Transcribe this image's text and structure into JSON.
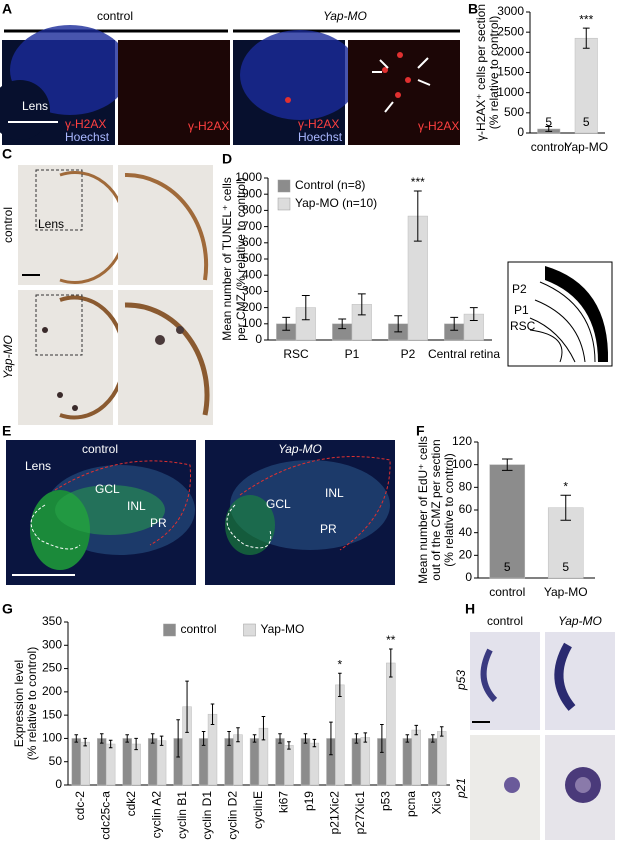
{
  "panel_letters": [
    "A",
    "B",
    "C",
    "D",
    "E",
    "F",
    "G",
    "H"
  ],
  "panel_a": {
    "headers": [
      "control",
      "Yap-MO"
    ],
    "labels": [
      "Lens",
      "γ-H2AX",
      "Hoechst",
      "γ-H2AX",
      "γ-H2AX",
      "Hoechst",
      "γ-H2AX"
    ]
  },
  "panel_c": {
    "rows": [
      "control",
      "Yap-MO"
    ],
    "labels": [
      "Lens"
    ]
  },
  "panel_d_diagram": {
    "labels": [
      "P2",
      "P1",
      "RSC"
    ]
  },
  "panel_e": {
    "headers": [
      "control",
      "Yap-MO"
    ],
    "labels": [
      "Lens",
      "GCL",
      "INL",
      "PR",
      "GCL",
      "INL",
      "PR"
    ]
  },
  "panel_h": {
    "headers": [
      "control",
      "Yap-MO"
    ],
    "rows": [
      "p53",
      "p21"
    ]
  },
  "chart_data": [
    {
      "type": "bar",
      "ylabel": [
        "γ-H2AX⁺ cells per section",
        "(% relative to control)"
      ],
      "categories": [
        "control",
        "Yap-MO"
      ],
      "values": [
        100,
        2350
      ],
      "errors": [
        60,
        250
      ],
      "colors": [
        "#8c8c8c",
        "#dcdcdc"
      ],
      "n_labels": [
        "5",
        "5"
      ],
      "significance": [
        null,
        "***"
      ],
      "ylim": [
        0,
        3000
      ],
      "yticks": [
        0,
        500,
        1000,
        1500,
        2000,
        2500,
        3000
      ]
    },
    {
      "type": "bar",
      "ylabel": [
        "Mean number of TUNEL⁺ cells",
        "per CMZ (% relative to control)"
      ],
      "categories": [
        "RSC",
        "P1",
        "P2",
        "Central retina"
      ],
      "series": [
        {
          "name": "Control (n=8)",
          "color": "#8c8c8c",
          "values": [
            100,
            100,
            100,
            100
          ],
          "errors": [
            40,
            30,
            50,
            40
          ]
        },
        {
          "name": "Yap-MO (n=10)",
          "color": "#dcdcdc",
          "values": [
            200,
            220,
            765,
            160
          ],
          "errors": [
            75,
            65,
            155,
            40
          ],
          "significance": [
            null,
            null,
            "***",
            null
          ]
        }
      ],
      "legend": "upper left",
      "ylim": [
        0,
        1000
      ],
      "yticks": [
        0,
        100,
        200,
        300,
        400,
        500,
        600,
        700,
        800,
        900,
        1000
      ]
    },
    {
      "type": "bar",
      "ylabel": [
        "Mean number of EdU⁺ cells",
        "out of the CMZ per section",
        "(% relative to control)"
      ],
      "categories": [
        "control",
        "Yap-MO"
      ],
      "values": [
        100,
        62
      ],
      "errors": [
        5,
        11
      ],
      "colors": [
        "#8c8c8c",
        "#dcdcdc"
      ],
      "n_labels": [
        "5",
        "5"
      ],
      "significance": [
        null,
        "*"
      ],
      "ylim": [
        0,
        120
      ],
      "yticks": [
        0,
        20,
        40,
        60,
        80,
        100,
        120
      ]
    },
    {
      "type": "bar",
      "ylabel": [
        "Expression level",
        "(% relative to control)"
      ],
      "categories": [
        "cdc-2",
        "cdc25c-a",
        "cdk2",
        "cyclin A2",
        "cyclin B1",
        "cyclin D1",
        "cyclin D2",
        "cyclinE",
        "ki67",
        "p19",
        "p21Xic2",
        "p27Xic1",
        "p53",
        "pcna",
        "Xic3"
      ],
      "series": [
        {
          "name": "control",
          "color": "#8c8c8c",
          "values": [
            100,
            100,
            100,
            100,
            100,
            100,
            100,
            100,
            100,
            100,
            100,
            100,
            100,
            100,
            100
          ],
          "errors": [
            8,
            10,
            8,
            10,
            40,
            15,
            15,
            8,
            10,
            10,
            35,
            10,
            30,
            8,
            8
          ]
        },
        {
          "name": "Yap-MO",
          "color": "#dcdcdc",
          "values": [
            92,
            88,
            88,
            95,
            168,
            152,
            108,
            122,
            85,
            90,
            215,
            102,
            262,
            118,
            115
          ],
          "errors": [
            8,
            8,
            12,
            10,
            55,
            22,
            15,
            25,
            8,
            8,
            25,
            10,
            30,
            10,
            10
          ],
          "significance": [
            null,
            null,
            null,
            null,
            null,
            null,
            null,
            null,
            null,
            null,
            "*",
            null,
            "**",
            null,
            null
          ]
        }
      ],
      "legend": "upper center",
      "ylim": [
        0,
        350
      ],
      "yticks": [
        0,
        50,
        100,
        150,
        200,
        250,
        300,
        350
      ]
    }
  ]
}
